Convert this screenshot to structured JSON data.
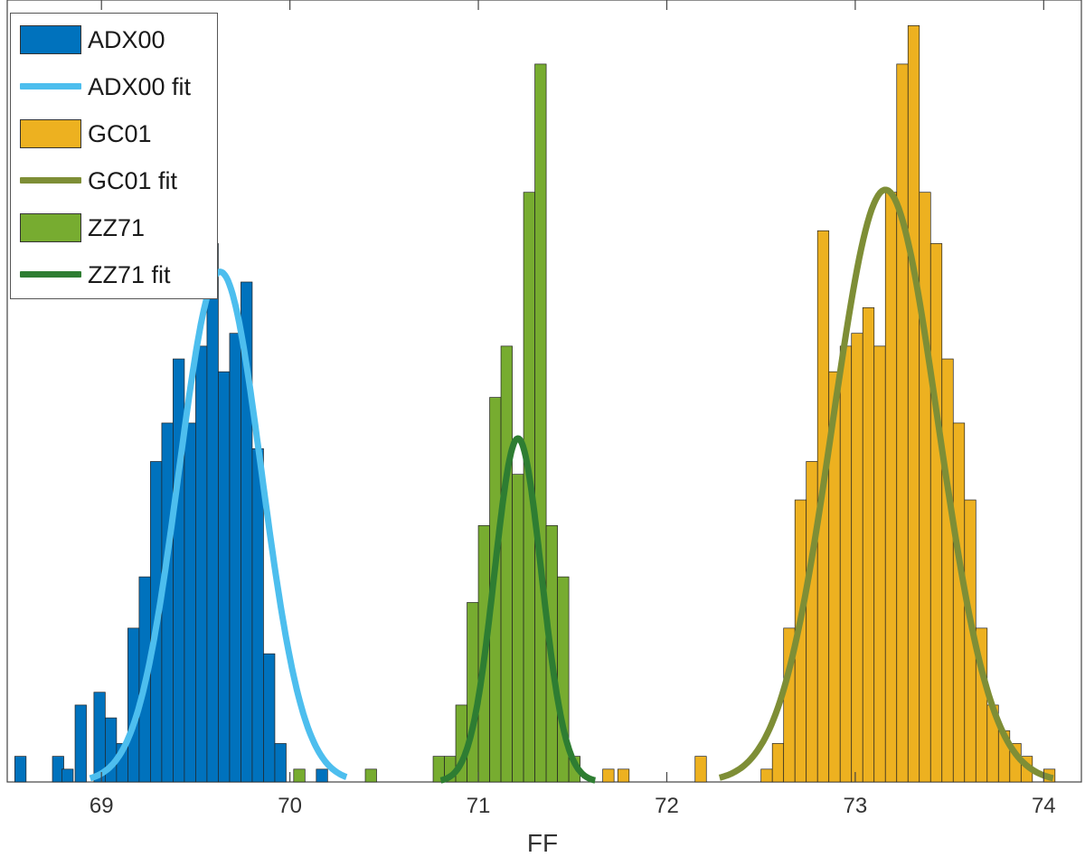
{
  "chart_data": {
    "type": "bar",
    "xlabel": "FF",
    "ylabel": "",
    "xlim": [
      68.5,
      74.2
    ],
    "x_ticks": [
      69,
      70,
      71,
      72,
      73,
      74
    ],
    "y_ticks_labeled": false,
    "grid": false,
    "legend_position": "top-left",
    "bin_width": 0.06,
    "series": [
      {
        "name": "ADX00",
        "kind": "histogram",
        "color": "#0072BD",
        "bins": [
          [
            68.54,
            1
          ],
          [
            68.74,
            1
          ],
          [
            68.79,
            0.5
          ],
          [
            68.86,
            3
          ],
          [
            68.96,
            3.5
          ],
          [
            69.02,
            2.5
          ],
          [
            69.08,
            1.5
          ],
          [
            69.14,
            6
          ],
          [
            69.2,
            8
          ],
          [
            69.26,
            12.5
          ],
          [
            69.32,
            14
          ],
          [
            69.38,
            16.5
          ],
          [
            69.44,
            14
          ],
          [
            69.5,
            17
          ],
          [
            69.56,
            21
          ],
          [
            69.62,
            16
          ],
          [
            69.68,
            17.5
          ],
          [
            69.74,
            19.5
          ],
          [
            69.8,
            13
          ],
          [
            69.86,
            5
          ],
          [
            69.92,
            1.5
          ],
          [
            70.14,
            0.5
          ]
        ]
      },
      {
        "name": "ADX00 fit",
        "kind": "gaussian",
        "color": "#4DBEEE",
        "mean": 69.63,
        "sigma": 0.22,
        "peak": 19.9,
        "x_range": [
          68.94,
          70.3
        ]
      },
      {
        "name": "GC01",
        "kind": "histogram",
        "color": "#EDB120",
        "bins": [
          [
            71.66,
            0.5
          ],
          [
            71.74,
            0.5
          ],
          [
            72.15,
            1
          ],
          [
            72.5,
            0.5
          ],
          [
            72.56,
            1.5
          ],
          [
            72.62,
            6
          ],
          [
            72.68,
            11
          ],
          [
            72.74,
            12.5
          ],
          [
            72.8,
            21.5
          ],
          [
            72.86,
            16
          ],
          [
            72.92,
            17
          ],
          [
            72.98,
            17.5
          ],
          [
            73.04,
            18.5
          ],
          [
            73.1,
            17
          ],
          [
            73.16,
            23
          ],
          [
            73.22,
            28
          ],
          [
            73.28,
            29.5
          ],
          [
            73.34,
            23
          ],
          [
            73.4,
            21
          ],
          [
            73.46,
            16.5
          ],
          [
            73.52,
            14
          ],
          [
            73.58,
            11
          ],
          [
            73.64,
            6
          ],
          [
            73.7,
            3
          ],
          [
            73.76,
            2
          ],
          [
            73.82,
            1.5
          ],
          [
            73.88,
            1
          ],
          [
            74.0,
            0.5
          ]
        ]
      },
      {
        "name": "GC01 fit",
        "kind": "gaussian",
        "color": "#7E8E36",
        "mean": 73.16,
        "sigma": 0.28,
        "peak": 23.1,
        "x_range": [
          72.28,
          74.05
        ]
      },
      {
        "name": "ZZ71",
        "kind": "histogram",
        "color": "#77AC30",
        "bins": [
          [
            70.02,
            0.5
          ],
          [
            70.4,
            0.5
          ],
          [
            70.76,
            1
          ],
          [
            70.82,
            1
          ],
          [
            70.88,
            3
          ],
          [
            70.94,
            7
          ],
          [
            71.0,
            10
          ],
          [
            71.06,
            15
          ],
          [
            71.12,
            17
          ],
          [
            71.18,
            12
          ],
          [
            71.24,
            23
          ],
          [
            71.3,
            28
          ],
          [
            71.36,
            10
          ],
          [
            71.42,
            8
          ],
          [
            71.48,
            1
          ]
        ]
      },
      {
        "name": "ZZ71 fit",
        "kind": "gaussian",
        "color": "#2E7D32",
        "mean": 71.21,
        "sigma": 0.125,
        "peak": 13.4,
        "x_range": [
          70.8,
          71.62
        ]
      }
    ]
  },
  "legend": {
    "items": [
      {
        "label": "ADX00",
        "kind": "patch",
        "color": "#0072BD"
      },
      {
        "label": "ADX00 fit",
        "kind": "line",
        "color": "#4DBEEE"
      },
      {
        "label": "GC01",
        "kind": "patch",
        "color": "#EDB120"
      },
      {
        "label": "GC01 fit",
        "kind": "line",
        "color": "#7E8E36"
      },
      {
        "label": "ZZ71",
        "kind": "patch",
        "color": "#77AC30"
      },
      {
        "label": "ZZ71 fit",
        "kind": "line",
        "color": "#2E7D32"
      }
    ]
  }
}
